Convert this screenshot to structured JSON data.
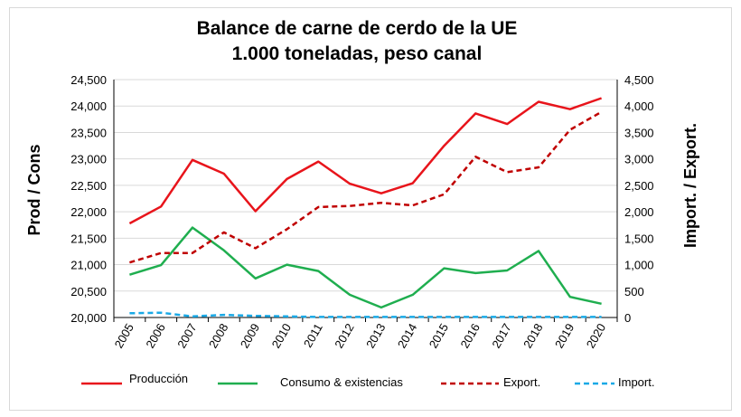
{
  "chart_data": {
    "type": "line",
    "title": [
      "Balance de carne de cerdo de la UE",
      "1.000 toneladas, peso canal"
    ],
    "ylabel_left": "Prod / Cons",
    "ylabel_right": "Import. / Export.",
    "x": [
      "2005",
      "2006",
      "2007",
      "2008",
      "2009",
      "2010",
      "2011",
      "2012",
      "2013",
      "2014",
      "2015",
      "2016",
      "2017",
      "2018",
      "2019",
      "2020"
    ],
    "ylim_left": [
      20000,
      24500
    ],
    "ylim_right": [
      0,
      4500
    ],
    "yticks_left": [
      "20,000",
      "20,500",
      "21,000",
      "21,500",
      "22,000",
      "22,500",
      "23,000",
      "23,500",
      "24,000",
      "24,500"
    ],
    "yticks_right": [
      "0",
      "500",
      "1,000",
      "1,500",
      "2,000",
      "2,500",
      "3,000",
      "3,500",
      "4,000",
      "4,500"
    ],
    "grid": "horizontal",
    "legend_position": "bottom",
    "series": [
      {
        "name": "Producción",
        "axis": "left",
        "style": "solid",
        "color": "#e8141b",
        "values": [
          21780,
          22100,
          22980,
          22720,
          22010,
          22620,
          22950,
          22530,
          22350,
          22540,
          23250,
          23860,
          23660,
          24080,
          23940,
          24150
        ]
      },
      {
        "name": "Consumo & existencias",
        "axis": "left",
        "style": "solid",
        "color": "#1fae4f",
        "values": [
          20810,
          20990,
          21700,
          21270,
          20740,
          21000,
          20880,
          20430,
          20190,
          20430,
          20930,
          20840,
          20890,
          21260,
          20390,
          20260
        ]
      },
      {
        "name": "Export.",
        "axis": "right",
        "style": "dashed",
        "color": "#c00000",
        "values": [
          1040,
          1220,
          1220,
          1610,
          1310,
          1670,
          2090,
          2110,
          2170,
          2120,
          2330,
          3040,
          2750,
          2840,
          3550,
          3890
        ]
      },
      {
        "name": "Import.",
        "axis": "right",
        "style": "dashed",
        "color": "#19a9e6",
        "values": [
          80,
          90,
          20,
          50,
          30,
          20,
          10,
          10,
          10,
          10,
          10,
          10,
          10,
          10,
          10,
          10
        ]
      }
    ]
  }
}
